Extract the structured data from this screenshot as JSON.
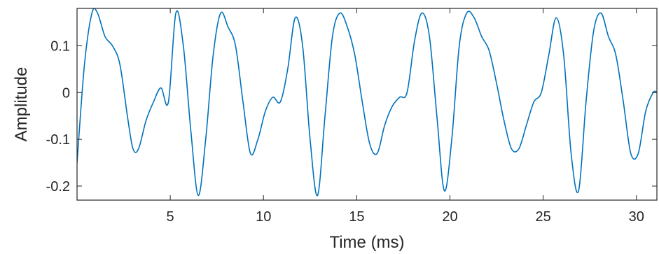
{
  "chart_data": {
    "type": "line",
    "title": "",
    "xlabel": "Time (ms)",
    "ylabel": "Amplitude",
    "xlim": [
      0,
      31.1
    ],
    "ylim": [
      -0.23,
      0.18
    ],
    "xticks": [
      5,
      10,
      15,
      20,
      25,
      30
    ],
    "xtick_labels": [
      "5",
      "10",
      "15",
      "20",
      "25",
      "30"
    ],
    "yticks": [
      0.1,
      0,
      -0.1,
      -0.2
    ],
    "ytick_labels": [
      "0.1",
      "0",
      "-0.1",
      "-0.2"
    ],
    "grid": false,
    "series": [
      {
        "color": "#0072bd",
        "x": [
          0,
          0.4,
          0.8,
          1.1,
          1.5,
          1.9,
          2.3,
          2.7,
          3.0,
          3.3,
          3.7,
          4.1,
          4.5,
          4.9,
          5.3,
          5.7,
          6.1,
          6.5,
          6.9,
          7.3,
          7.7,
          8.1,
          8.5,
          8.9,
          9.3,
          9.7,
          10.1,
          10.5,
          10.9,
          11.3,
          11.7,
          12.1,
          12.5,
          12.9,
          13.3,
          13.7,
          14.1,
          14.5,
          14.9,
          15.3,
          15.7,
          16.1,
          16.5,
          16.9,
          17.3,
          17.7,
          18.1,
          18.5,
          18.9,
          19.3,
          19.7,
          20.1,
          20.5,
          20.9,
          21.3,
          21.7,
          22.1,
          22.5,
          22.9,
          23.3,
          23.7,
          24.1,
          24.5,
          24.9,
          25.3,
          25.7,
          26.1,
          26.5,
          26.9,
          27.3,
          27.7,
          28.1,
          28.5,
          28.9,
          29.3,
          29.7,
          30.1,
          30.5,
          30.9,
          31.1
        ],
        "values": [
          -0.15,
          0.06,
          0.17,
          0.17,
          0.12,
          0.1,
          0.06,
          -0.05,
          -0.12,
          -0.12,
          -0.06,
          -0.02,
          0.01,
          -0.02,
          0.17,
          0.1,
          -0.08,
          -0.22,
          -0.1,
          0.08,
          0.17,
          0.14,
          0.1,
          -0.02,
          -0.13,
          -0.1,
          -0.04,
          -0.01,
          -0.02,
          0.05,
          0.16,
          0.1,
          -0.1,
          -0.22,
          -0.05,
          0.12,
          0.17,
          0.14,
          0.08,
          -0.02,
          -0.11,
          -0.13,
          -0.07,
          -0.03,
          -0.01,
          0.0,
          0.11,
          0.17,
          0.12,
          -0.05,
          -0.21,
          -0.1,
          0.1,
          0.17,
          0.16,
          0.12,
          0.09,
          0.02,
          -0.06,
          -0.12,
          -0.12,
          -0.07,
          -0.02,
          0.0,
          0.08,
          0.16,
          0.08,
          -0.13,
          -0.21,
          -0.02,
          0.13,
          0.17,
          0.12,
          0.08,
          -0.02,
          -0.13,
          -0.13,
          -0.04,
          0.0,
          0.0
        ]
      }
    ]
  }
}
